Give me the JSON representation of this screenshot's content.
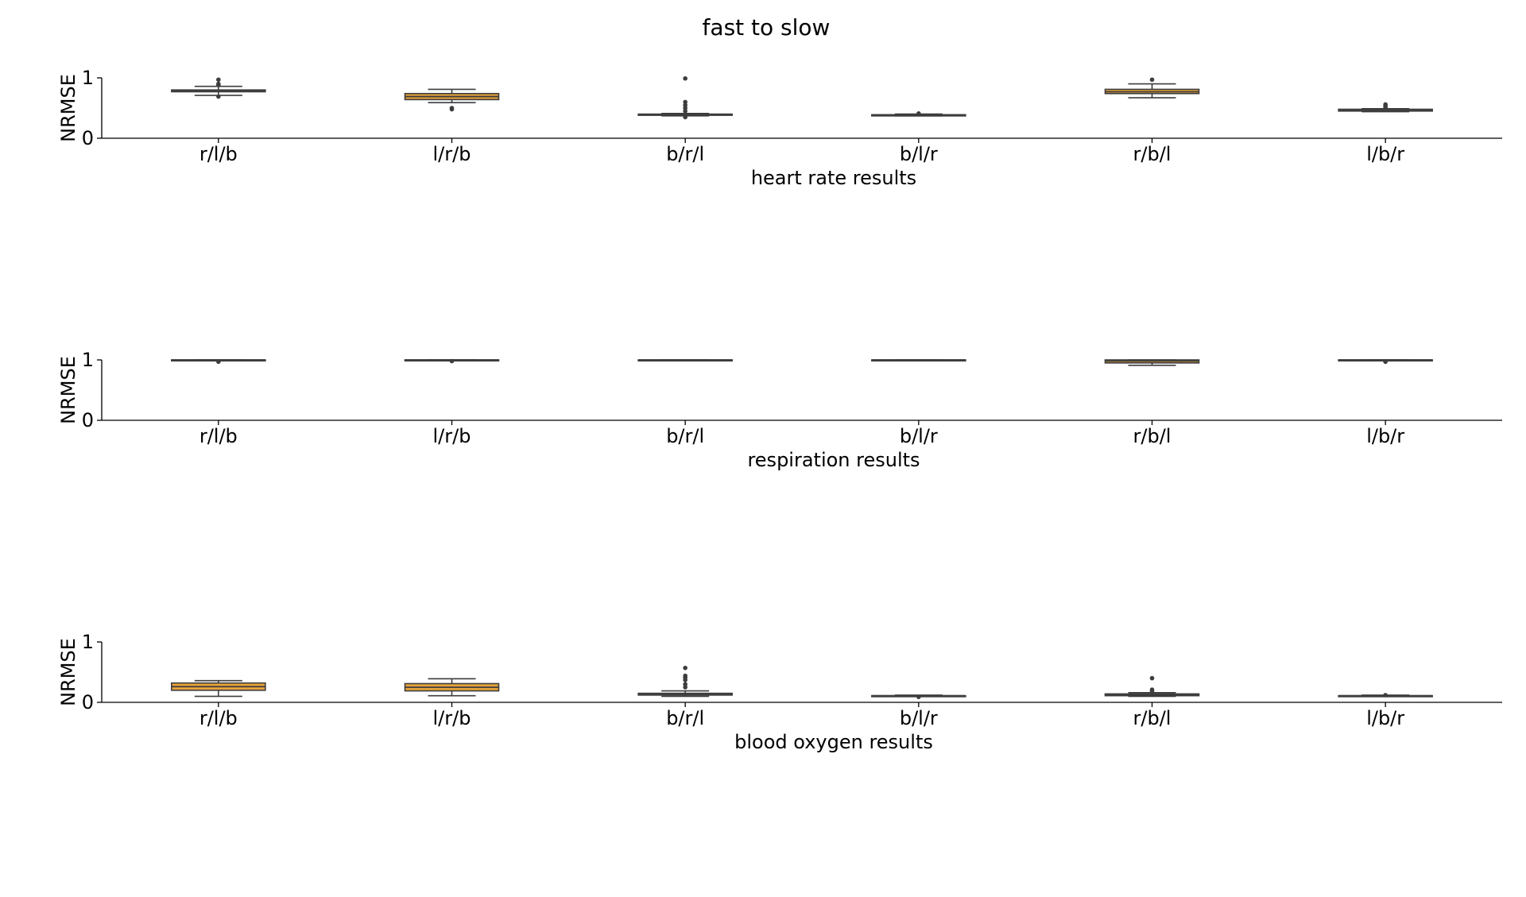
{
  "chart_data": {
    "type": "box",
    "title": "fast to slow",
    "colors": {
      "box_fill": "#e8a43a",
      "line": "#3d3d3d",
      "axis": "#000000"
    },
    "categories": [
      "r/l/b",
      "l/r/b",
      "b/r/l",
      "b/l/r",
      "r/b/l",
      "l/b/r"
    ],
    "panels": [
      {
        "xlabel": "heart rate results",
        "ylabel": "NRMSE",
        "ylim": [
          0,
          1
        ],
        "yticks": [
          "0",
          "1"
        ],
        "boxes": [
          {
            "q1": 0.77,
            "median": 0.785,
            "q3": 0.8,
            "whislo": 0.71,
            "whishi": 0.86,
            "fliers": [
              0.69,
              0.88,
              0.9,
              0.97
            ]
          },
          {
            "q1": 0.64,
            "median": 0.69,
            "q3": 0.74,
            "whislo": 0.59,
            "whishi": 0.81,
            "fliers": [
              0.48,
              0.5
            ]
          },
          {
            "q1": 0.38,
            "median": 0.39,
            "q3": 0.4,
            "whislo": 0.37,
            "whishi": 0.41,
            "fliers": [
              0.35,
              0.45,
              0.5,
              0.55,
              0.6,
              0.99
            ]
          },
          {
            "q1": 0.37,
            "median": 0.38,
            "q3": 0.39,
            "whislo": 0.37,
            "whishi": 0.4,
            "fliers": [
              0.41
            ]
          },
          {
            "q1": 0.74,
            "median": 0.77,
            "q3": 0.81,
            "whislo": 0.67,
            "whishi": 0.9,
            "fliers": [
              0.97
            ]
          },
          {
            "q1": 0.45,
            "median": 0.46,
            "q3": 0.48,
            "whislo": 0.44,
            "whishi": 0.49,
            "fliers": [
              0.51,
              0.53,
              0.56
            ]
          }
        ]
      },
      {
        "xlabel": "respiration results",
        "ylabel": "NRMSE",
        "ylim": [
          0,
          1
        ],
        "yticks": [
          "0",
          "1"
        ],
        "boxes": [
          {
            "q1": 1.0,
            "median": 1.0,
            "q3": 1.0,
            "whislo": 1.0,
            "whishi": 1.0,
            "fliers": [
              0.97
            ]
          },
          {
            "q1": 1.0,
            "median": 1.0,
            "q3": 1.0,
            "whislo": 1.0,
            "whishi": 1.0,
            "fliers": [
              0.98
            ]
          },
          {
            "q1": 1.0,
            "median": 1.0,
            "q3": 1.0,
            "whislo": 1.0,
            "whishi": 1.0,
            "fliers": []
          },
          {
            "q1": 1.0,
            "median": 1.0,
            "q3": 1.0,
            "whislo": 1.0,
            "whishi": 1.0,
            "fliers": []
          },
          {
            "q1": 0.95,
            "median": 0.98,
            "q3": 1.0,
            "whislo": 0.91,
            "whishi": 1.0,
            "fliers": []
          },
          {
            "q1": 1.0,
            "median": 1.0,
            "q3": 1.0,
            "whislo": 1.0,
            "whishi": 1.0,
            "fliers": [
              0.97
            ]
          }
        ]
      },
      {
        "xlabel": "blood oxygen results",
        "ylabel": "NRMSE",
        "ylim": [
          0,
          1
        ],
        "yticks": [
          "0",
          "1"
        ],
        "boxes": [
          {
            "q1": 0.2,
            "median": 0.26,
            "q3": 0.32,
            "whislo": 0.1,
            "whishi": 0.36,
            "fliers": []
          },
          {
            "q1": 0.19,
            "median": 0.25,
            "q3": 0.31,
            "whislo": 0.11,
            "whishi": 0.39,
            "fliers": []
          },
          {
            "q1": 0.12,
            "median": 0.14,
            "q3": 0.15,
            "whislo": 0.1,
            "whishi": 0.19,
            "fliers": [
              0.25,
              0.3,
              0.37,
              0.41,
              0.44,
              0.57
            ]
          },
          {
            "q1": 0.1,
            "median": 0.11,
            "q3": 0.11,
            "whislo": 0.1,
            "whishi": 0.12,
            "fliers": [
              0.09
            ]
          },
          {
            "q1": 0.11,
            "median": 0.12,
            "q3": 0.14,
            "whislo": 0.1,
            "whishi": 0.16,
            "fliers": [
              0.18,
              0.21,
              0.4
            ]
          },
          {
            "q1": 0.1,
            "median": 0.11,
            "q3": 0.11,
            "whislo": 0.1,
            "whishi": 0.12,
            "fliers": [
              0.12
            ]
          }
        ]
      }
    ]
  }
}
